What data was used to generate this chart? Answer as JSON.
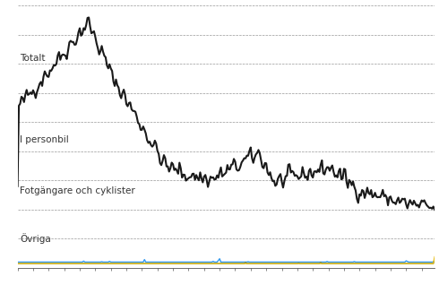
{
  "labels": {
    "totalt": "Totalt",
    "personbil": "I personbil",
    "fotgangare": "Fotgängare och cyklister",
    "ovriga": "Övriga"
  },
  "colors": {
    "totalt": "#1a1a1a",
    "personbil": "#3399ee",
    "fotgangare": "#6b7d2e",
    "ovriga": "#e8c020"
  },
  "linewidths": {
    "totalt": 1.5,
    "personbil": 1.0,
    "fotgangare": 1.0,
    "ovriga": 1.0
  },
  "background_color": "#ffffff",
  "grid_color": "#999999",
  "grid_style": "--",
  "grid_linewidth": 0.5,
  "label_fontsize": 7.5
}
